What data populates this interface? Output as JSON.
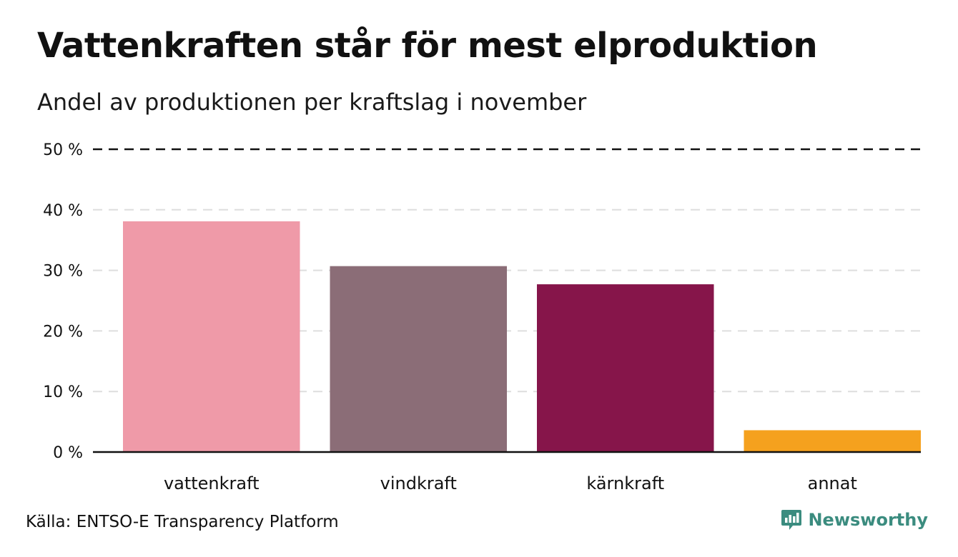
{
  "header": {
    "title": "Vattenkraften står för mest elproduktion",
    "subtitle": "Andel av produktionen per kraftslag i november"
  },
  "footer": {
    "source": "Källa: ENTSO-E Transparency Platform",
    "brand": "Newsworthy",
    "brand_icon": "newsworthy-logo-icon",
    "brand_color": "#3b8c7f"
  },
  "chart_data": {
    "type": "bar",
    "categories": [
      "vattenkraft",
      "vindkraft",
      "kärnkraft",
      "annat"
    ],
    "values": [
      38.1,
      30.7,
      27.7,
      3.6
    ],
    "colors": [
      "#ef9aa8",
      "#8b6d77",
      "#86154a",
      "#f5a11e"
    ],
    "ylim": [
      0,
      50
    ],
    "yticks": [
      0,
      10,
      20,
      30,
      40,
      50
    ],
    "ytick_labels": [
      "0 %",
      "10 %",
      "20 %",
      "30 %",
      "40 %",
      "50 %"
    ],
    "grid": true,
    "ymax_line_style": "dashed",
    "xlabel": "",
    "ylabel": ""
  }
}
